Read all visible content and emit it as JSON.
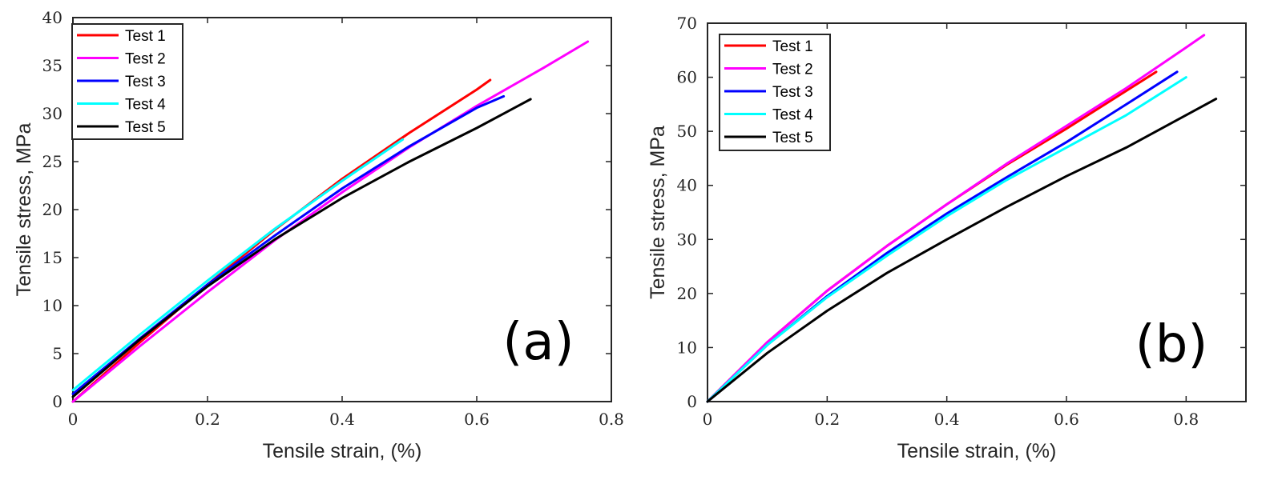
{
  "chart_data": [
    {
      "type": "line",
      "panel_label": "(a)",
      "xlabel": "Tensile strain, (%)",
      "ylabel": "Tensile stress, MPa",
      "xlim": [
        0,
        0.8
      ],
      "ylim": [
        0,
        40
      ],
      "xticks": [
        0,
        0.2,
        0.4,
        0.6,
        0.8
      ],
      "yticks": [
        0,
        5,
        10,
        15,
        20,
        25,
        30,
        35,
        40
      ],
      "xtick_labels": [
        "0",
        "0.2",
        "0.4",
        "0.6",
        "0.8"
      ],
      "ytick_labels": [
        "0",
        "5",
        "10",
        "15",
        "20",
        "25",
        "30",
        "35",
        "40"
      ],
      "grid": false,
      "legend_position": "top-left",
      "series": [
        {
          "name": "Test 1",
          "color": "#ff0000",
          "x": [
            0,
            0.1,
            0.2,
            0.3,
            0.4,
            0.5,
            0.6,
            0.62
          ],
          "y": [
            0,
            6.2,
            12.2,
            17.9,
            23.2,
            28.0,
            32.5,
            33.5
          ]
        },
        {
          "name": "Test 2",
          "color": "#ff00ff",
          "x": [
            0,
            0.1,
            0.2,
            0.3,
            0.4,
            0.5,
            0.6,
            0.7,
            0.765
          ],
          "y": [
            0,
            5.8,
            11.4,
            16.8,
            21.8,
            26.5,
            30.8,
            34.8,
            37.5
          ]
        },
        {
          "name": "Test 3",
          "color": "#0000ff",
          "x": [
            0,
            0.1,
            0.2,
            0.3,
            0.4,
            0.5,
            0.6,
            0.64
          ],
          "y": [
            0.8,
            6.6,
            12.2,
            17.3,
            22.2,
            26.6,
            30.6,
            31.8
          ]
        },
        {
          "name": "Test 4",
          "color": "#00ffff",
          "x": [
            0,
            0.1,
            0.2,
            0.3,
            0.4,
            0.49
          ],
          "y": [
            1.2,
            7.0,
            12.6,
            18.0,
            23.0,
            27.3
          ]
        },
        {
          "name": "Test 5",
          "color": "#000000",
          "x": [
            0,
            0.1,
            0.2,
            0.3,
            0.4,
            0.5,
            0.6,
            0.68
          ],
          "y": [
            0.5,
            6.5,
            12.0,
            16.9,
            21.2,
            25.0,
            28.5,
            31.5
          ]
        }
      ]
    },
    {
      "type": "line",
      "panel_label": "(b)",
      "xlabel": "Tensile strain, (%)",
      "ylabel": "Tensile stress, MPa",
      "xlim": [
        0,
        0.9
      ],
      "ylim": [
        0,
        70
      ],
      "xticks": [
        0,
        0.2,
        0.4,
        0.6,
        0.8
      ],
      "yticks": [
        0,
        10,
        20,
        30,
        40,
        50,
        60,
        70
      ],
      "xtick_labels": [
        "0",
        "0.2",
        "0.4",
        "0.6",
        "0.8"
      ],
      "ytick_labels": [
        "0",
        "10",
        "20",
        "30",
        "40",
        "50",
        "60",
        "70"
      ],
      "grid": false,
      "legend_position": "top-left",
      "series": [
        {
          "name": "Test 1",
          "color": "#ff0000",
          "x": [
            0,
            0.1,
            0.2,
            0.3,
            0.4,
            0.5,
            0.6,
            0.7,
            0.75
          ],
          "y": [
            0,
            11,
            20.5,
            28.8,
            36.5,
            43.8,
            50.5,
            57.5,
            61
          ]
        },
        {
          "name": "Test 2",
          "color": "#ff00ff",
          "x": [
            0,
            0.1,
            0.2,
            0.3,
            0.4,
            0.5,
            0.6,
            0.7,
            0.8,
            0.83
          ],
          "y": [
            0,
            11,
            20.5,
            28.8,
            36.5,
            44.0,
            51.0,
            58.0,
            65.5,
            67.8
          ]
        },
        {
          "name": "Test 3",
          "color": "#0000ff",
          "x": [
            0,
            0.1,
            0.2,
            0.3,
            0.4,
            0.5,
            0.6,
            0.7,
            0.785
          ],
          "y": [
            0,
            10.5,
            19.5,
            27.5,
            34.8,
            41.5,
            48.0,
            55.0,
            61
          ]
        },
        {
          "name": "Test 4",
          "color": "#00ffff",
          "x": [
            0,
            0.1,
            0.2,
            0.3,
            0.4,
            0.5,
            0.6,
            0.7,
            0.8
          ],
          "y": [
            0,
            10.5,
            19.3,
            27.0,
            34.3,
            41.0,
            47.0,
            53.0,
            60
          ]
        },
        {
          "name": "Test 5",
          "color": "#000000",
          "x": [
            0,
            0.1,
            0.2,
            0.3,
            0.4,
            0.5,
            0.6,
            0.7,
            0.85
          ],
          "y": [
            0,
            9.0,
            16.8,
            23.8,
            30.0,
            36.0,
            41.7,
            47.0,
            56
          ]
        }
      ]
    }
  ]
}
